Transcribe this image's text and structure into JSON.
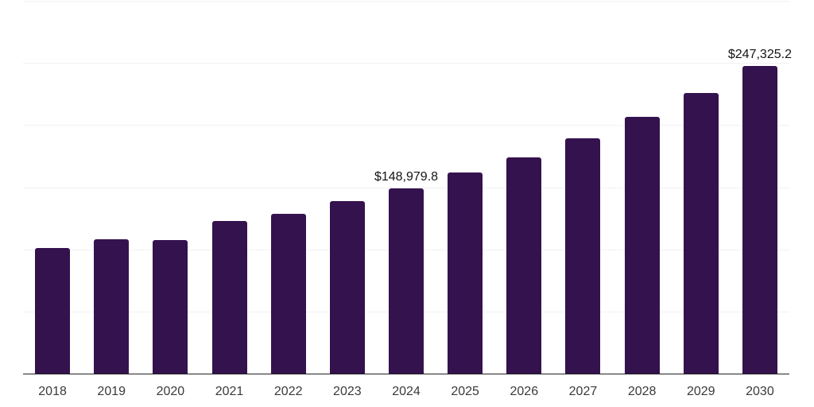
{
  "chart_data": {
    "type": "bar",
    "title": "",
    "xlabel": "",
    "ylabel": "",
    "categories": [
      "2018",
      "2019",
      "2020",
      "2021",
      "2022",
      "2023",
      "2024",
      "2025",
      "2026",
      "2027",
      "2028",
      "2029",
      "2030"
    ],
    "values": [
      100900,
      108100,
      107300,
      123000,
      128800,
      138600,
      148979.8,
      161600,
      173800,
      189100,
      206400,
      225600,
      247325.2
    ],
    "point_labels": [
      {
        "category": "2024",
        "text": "$148,979.8"
      },
      {
        "category": "2030",
        "text": "$247,325.2"
      }
    ],
    "ylim": [
      0,
      300000
    ],
    "gridline_step": 50000,
    "grid": "horizontal-only",
    "legend": "none",
    "y_axis_tick_labels": "none",
    "colors": {
      "bar": "#34124e",
      "gridline": "#f1f1f4",
      "axis_line": "#222222",
      "value_label": "#141414",
      "tick_label": "#3a3a3a",
      "background": "#ffffff"
    }
  }
}
